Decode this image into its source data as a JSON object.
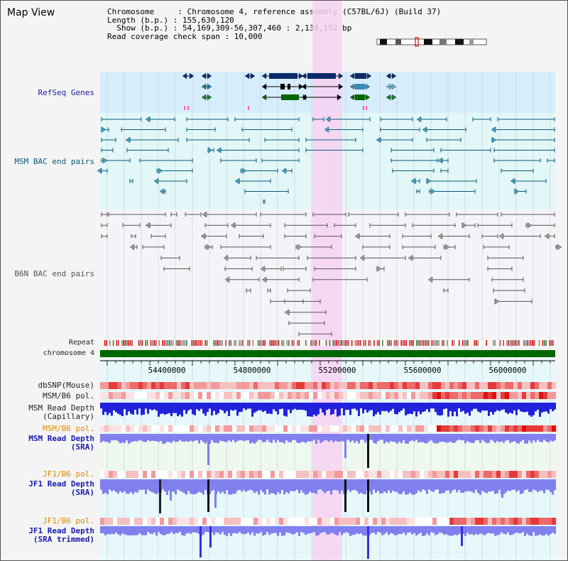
{
  "title": "Map View",
  "info": {
    "line1": "Chromosome     : Chromosome 4, reference assembly (C57BL/6J) (Build 37)",
    "line2": "Length (b.p.) : 155,630,120",
    "line3": "  Show (b.p.) : 54,169,309-56,307,460 : 2,138,152 bp",
    "line4": "Read coverage check span : 10,000"
  },
  "tracks": {
    "refseq": "RefSeq Genes",
    "msm_bac": "MSM BAC end pairs",
    "b6n_bac": "B6N BAC end pairs",
    "repeat": "Repeat",
    "chromosome": "chromosome 4",
    "dbsnp": "dbSNP(Mouse)",
    "msm_b6_pol": "MSM/B6 pol.",
    "msm_depth_cap_1": "MSM Read Depth",
    "msm_depth_cap_2": "(Capillary)",
    "msm_b6_pol2": "MSM/B6 pol.",
    "msm_depth_sra_1": "MSM Read Depth",
    "msm_depth_sra_2": "(SRA)",
    "jf1_b6_pol": "JF1/B6 pol.",
    "jf1_depth_sra_1": "JF1 Read Depth",
    "jf1_depth_sra_2": "(SRA)",
    "jf1_b6_pol2": "JF1/B6 pol.",
    "jf1_depth_trim_1": "JF1 Read Depth",
    "jf1_depth_trim_2": "(SRA trimmed)"
  },
  "axis": {
    "ticks": [
      "54400000",
      "54800000",
      "55200000",
      "55600000",
      "56000000"
    ]
  },
  "colors": {
    "highlight": "#f7d2f2",
    "refseq_bg": "#d6eefb",
    "msm_bg": "#e2f7f8",
    "chrom_bar": "#006600",
    "snp_red": "#ee3333",
    "depth_blue": "#2222dd",
    "sra_blue": "#7777ee"
  }
}
